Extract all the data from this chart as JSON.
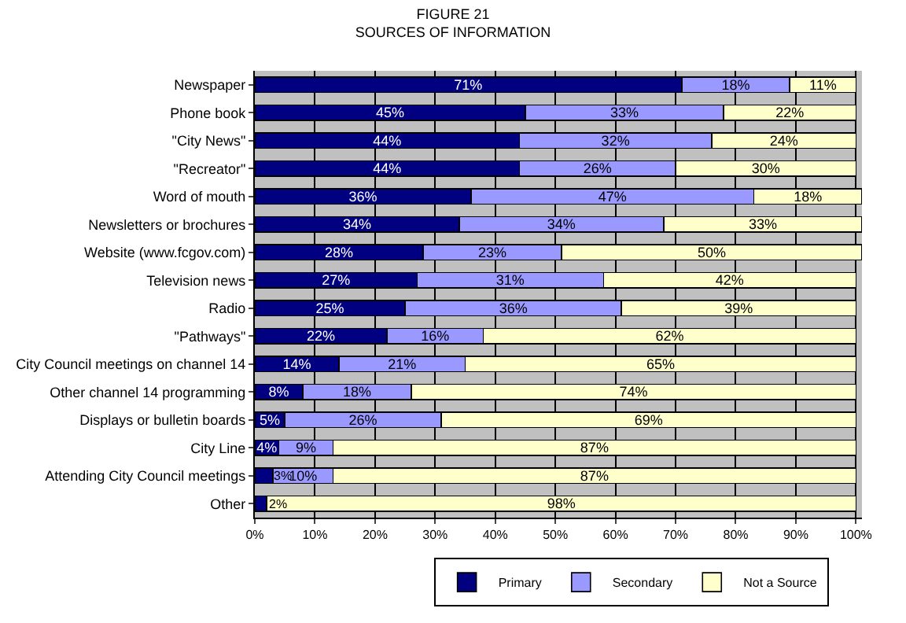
{
  "chart_data": {
    "type": "bar",
    "orientation": "horizontal",
    "stacked": true,
    "title": "FIGURE 21",
    "subtitle": "SOURCES OF INFORMATION",
    "categories": [
      "Newspaper",
      "Phone book",
      "\"City News\"",
      "\"Recreator\"",
      "Word of mouth",
      "Newsletters or brochures",
      "Website (www.fcgov.com)",
      "Television news",
      "Radio",
      "\"Pathways\"",
      "City Council meetings on channel 14",
      "Other channel 14 programming",
      "Displays or bulletin boards",
      "City Line",
      "Attending City Council meetings",
      "Other"
    ],
    "series": [
      {
        "name": "Primary",
        "color": "#000080",
        "values": [
          71,
          45,
          44,
          44,
          36,
          34,
          28,
          27,
          25,
          22,
          14,
          8,
          5,
          4,
          3,
          2
        ],
        "value_labels": [
          "71%",
          "45%",
          "44%",
          "44%",
          "36%",
          "34%",
          "28%",
          "27%",
          "25%",
          "22%",
          "14%",
          "8%",
          "5%",
          "4%",
          "3%",
          "2%"
        ]
      },
      {
        "name": "Secondary",
        "color": "#9999ff",
        "values": [
          18,
          33,
          32,
          26,
          47,
          34,
          23,
          31,
          36,
          16,
          21,
          18,
          26,
          9,
          10,
          null
        ],
        "value_labels": [
          "18%",
          "33%",
          "32%",
          "26%",
          "47%",
          "34%",
          "23%",
          "31%",
          "36%",
          "16%",
          "21%",
          "18%",
          "26%",
          "9%",
          "10%",
          null
        ]
      },
      {
        "name": "Not a Source",
        "color": "#ffffcc",
        "values": [
          11,
          22,
          24,
          30,
          18,
          33,
          50,
          42,
          39,
          62,
          65,
          74,
          69,
          87,
          87,
          98
        ],
        "value_labels": [
          "11%",
          "22%",
          "24%",
          "30%",
          "18%",
          "33%",
          "50%",
          "42%",
          "39%",
          "62%",
          "65%",
          "74%",
          "69%",
          "87%",
          "87%",
          "98%"
        ]
      }
    ],
    "xlim": [
      0,
      101
    ],
    "xticks": [
      {
        "value": 0,
        "label": "0%"
      },
      {
        "value": 10,
        "label": "10%"
      },
      {
        "value": 20,
        "label": "20%"
      },
      {
        "value": 30,
        "label": "30%"
      },
      {
        "value": 40,
        "label": "40%"
      },
      {
        "value": 50,
        "label": "50%"
      },
      {
        "value": 60,
        "label": "60%"
      },
      {
        "value": 70,
        "label": "70%"
      },
      {
        "value": 80,
        "label": "80%"
      },
      {
        "value": 90,
        "label": "90%"
      },
      {
        "value": 100,
        "label": "100%"
      }
    ],
    "grid": "x",
    "legend": "bottom"
  }
}
